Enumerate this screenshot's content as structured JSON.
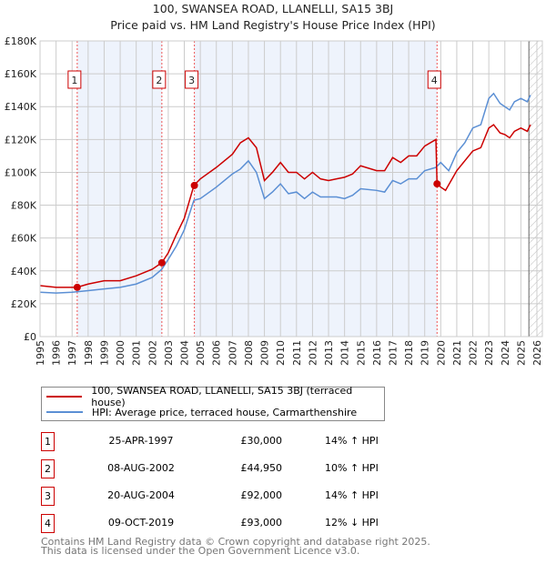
{
  "title": "100, SWANSEA ROAD, LLANELLI, SA15 3BJ",
  "subtitle": "Price paid vs. HM Land Registry's House Price Index (HPI)",
  "chart_data": {
    "type": "line",
    "xlim": [
      1995,
      2026
    ],
    "ylim": [
      0,
      180000
    ],
    "x_ticks": [
      1995,
      1996,
      1997,
      1998,
      1999,
      2000,
      2001,
      2002,
      2003,
      2004,
      2005,
      2006,
      2007,
      2008,
      2009,
      2010,
      2011,
      2012,
      2013,
      2014,
      2015,
      2016,
      2017,
      2018,
      2019,
      2020,
      2021,
      2022,
      2023,
      2024,
      2025,
      2026
    ],
    "y_ticks": [
      {
        "v": 0,
        "label": "£0"
      },
      {
        "v": 20000,
        "label": "£20K"
      },
      {
        "v": 40000,
        "label": "£40K"
      },
      {
        "v": 60000,
        "label": "£60K"
      },
      {
        "v": 80000,
        "label": "£80K"
      },
      {
        "v": 100000,
        "label": "£100K"
      },
      {
        "v": 120000,
        "label": "£120K"
      },
      {
        "v": 140000,
        "label": "£140K"
      },
      {
        "v": 160000,
        "label": "£160K"
      },
      {
        "v": 180000,
        "label": "£180K"
      }
    ],
    "series": [
      {
        "name": "100, SWANSEA ROAD, LLANELLI, SA15 3BJ (terraced house)",
        "color": "#cc0000",
        "x": [
          1995,
          1996,
          1997.3,
          1998,
          1999,
          2000,
          2001,
          2002,
          2002.6,
          2003,
          2003.5,
          2004,
          2004.6,
          2005,
          2006,
          2007,
          2007.5,
          2008,
          2008.5,
          2009,
          2009.5,
          2010,
          2010.5,
          2011,
          2011.5,
          2012,
          2012.5,
          2013,
          2013.5,
          2014,
          2014.5,
          2015,
          2016,
          2016.5,
          2017,
          2017.5,
          2018,
          2018.5,
          2019,
          2019.7,
          2019.77,
          2020,
          2020.3,
          2021,
          2021.5,
          2022,
          2022.5,
          2023,
          2023.3,
          2023.7,
          2024,
          2024.3,
          2024.6,
          2025,
          2025.4,
          2025.6
        ],
        "y": [
          31000,
          30000,
          30000,
          32000,
          34000,
          34000,
          37000,
          41000,
          45000,
          51000,
          62000,
          72000,
          92000,
          96000,
          103000,
          111000,
          118000,
          121000,
          115000,
          95000,
          100000,
          106000,
          100000,
          100000,
          96000,
          100000,
          96000,
          95000,
          96000,
          97000,
          99000,
          104000,
          101000,
          101000,
          109000,
          106000,
          110000,
          110000,
          116000,
          120000,
          93000,
          91000,
          89000,
          101000,
          107000,
          113000,
          115000,
          127000,
          129000,
          124000,
          123000,
          121000,
          125000,
          127000,
          125000,
          129000
        ]
      },
      {
        "name": "HPI: Average price, terraced house, Carmarthenshire",
        "color": "#5b8fd4",
        "x": [
          1995,
          1996,
          1997,
          1998,
          1999,
          2000,
          2001,
          2002,
          2002.6,
          2003,
          2003.5,
          2004,
          2004.6,
          2005,
          2006,
          2007,
          2007.5,
          2008,
          2008.5,
          2009,
          2009.5,
          2010,
          2010.5,
          2011,
          2011.5,
          2012,
          2012.5,
          2013,
          2013.5,
          2014,
          2014.5,
          2015,
          2016,
          2016.5,
          2017,
          2017.5,
          2018,
          2018.5,
          2019,
          2019.7,
          2020,
          2020.5,
          2021,
          2021.5,
          2022,
          2022.5,
          2023,
          2023.3,
          2023.7,
          2024,
          2024.3,
          2024.6,
          2025,
          2025.4,
          2025.6
        ],
        "y": [
          27000,
          26500,
          27000,
          28000,
          29000,
          30000,
          32000,
          36000,
          41000,
          47000,
          55000,
          65000,
          83000,
          84000,
          91000,
          99000,
          102000,
          107000,
          100000,
          84000,
          88000,
          93000,
          87000,
          88000,
          84000,
          88000,
          85000,
          85000,
          85000,
          84000,
          86000,
          90000,
          89000,
          88000,
          95000,
          93000,
          96000,
          96000,
          101000,
          103000,
          106000,
          101000,
          112000,
          118000,
          127000,
          129000,
          145000,
          148000,
          142000,
          140000,
          138000,
          143000,
          145000,
          143000,
          147000
        ]
      }
    ],
    "sales": [
      {
        "label": "1",
        "x": 1997.32,
        "y": 30000
      },
      {
        "label": "2",
        "x": 2002.6,
        "y": 44950
      },
      {
        "label": "3",
        "x": 2004.63,
        "y": 92000
      },
      {
        "label": "4",
        "x": 2019.77,
        "y": 93000
      }
    ],
    "shaded": [
      [
        1997.32,
        2002.6
      ],
      [
        2004.63,
        2019.77
      ]
    ],
    "hatched_from": 2025.5
  },
  "legend": [
    {
      "label": "100, SWANSEA ROAD, LLANELLI, SA15 3BJ (terraced house)",
      "color": "#cc0000"
    },
    {
      "label": "HPI: Average price, terraced house, Carmarthenshire",
      "color": "#5b8fd4"
    }
  ],
  "transactions": [
    {
      "num": "1",
      "date": "25-APR-1997",
      "price": "£30,000",
      "hpi": "14% ↑ HPI"
    },
    {
      "num": "2",
      "date": "08-AUG-2002",
      "price": "£44,950",
      "hpi": "10% ↑ HPI"
    },
    {
      "num": "3",
      "date": "20-AUG-2004",
      "price": "£92,000",
      "hpi": "14% ↑ HPI"
    },
    {
      "num": "4",
      "date": "09-OCT-2019",
      "price": "£93,000",
      "hpi": "12% ↓ HPI"
    }
  ],
  "footer": [
    "Contains HM Land Registry data © Crown copyright and database right 2025.",
    "This data is licensed under the Open Government Licence v3.0."
  ]
}
